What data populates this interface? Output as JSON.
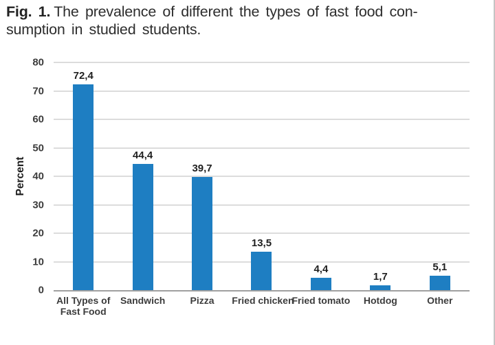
{
  "caption": {
    "label": "Fig. 1.",
    "line1": "The prevalence of different the types of fast food con-",
    "line2": "sumption in studied students."
  },
  "chart_data": {
    "type": "bar",
    "title": "",
    "categories": [
      "All Types of\nFast Food",
      "Sandwich",
      "Pizza",
      "Fried chicken",
      "Fried tomato",
      "Hotdog",
      "Other"
    ],
    "values": [
      72.4,
      44.4,
      39.7,
      13.5,
      4.4,
      1.7,
      5.1
    ],
    "value_labels": [
      "72,4",
      "44,4",
      "39,7",
      "13,5",
      "4,4",
      "1,7",
      "5,1"
    ],
    "xlabel": "",
    "ylabel": "Percent",
    "ylim": [
      0,
      80
    ],
    "yticks": [
      80,
      70,
      60,
      50,
      40,
      30,
      20,
      10,
      0
    ],
    "grid": true,
    "legend": "none",
    "bar_color": "#1e7ec2",
    "gridline_color": "#dcdcdc",
    "axis_line_color": "#9f9f9f"
  }
}
